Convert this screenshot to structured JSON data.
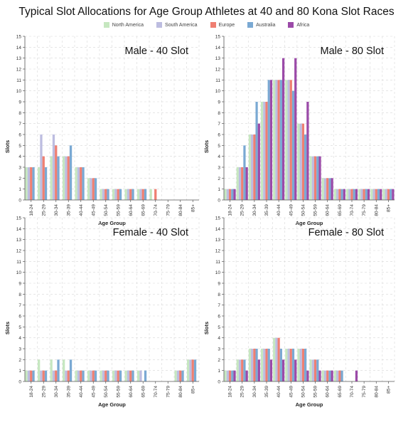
{
  "title": "Typical Slot Allocations for Age Group Athletes at 40 and 80 Kona Slot Races",
  "legend": [
    {
      "name": "North America",
      "color": "#c6e7c0"
    },
    {
      "name": "South America",
      "color": "#bdbde0"
    },
    {
      "name": "Europe",
      "color": "#ef7f72"
    },
    {
      "name": "Australia",
      "color": "#7aa9d3"
    },
    {
      "name": "Africa",
      "color": "#9b4aa8"
    }
  ],
  "chart_data": [
    {
      "type": "bar",
      "title": "Male - 40 Slot",
      "xlabel": "Age Group",
      "ylabel": "Slots",
      "ylim": [
        0,
        15
      ],
      "grid": true,
      "categories": [
        "18-24",
        "25-29",
        "30-34",
        "35-39",
        "40-44",
        "45-49",
        "50-54",
        "55-59",
        "60-64",
        "65-69",
        "70-74",
        "75-79",
        "80-84",
        "85+"
      ],
      "series": [
        {
          "name": "North America",
          "values": [
            3,
            3,
            4,
            4,
            3,
            2,
            1,
            1,
            1,
            1,
            1,
            0,
            0,
            0
          ]
        },
        {
          "name": "South America",
          "values": [
            3,
            6,
            6,
            4,
            3,
            2,
            1,
            1,
            1,
            1,
            0,
            0,
            0,
            0
          ]
        },
        {
          "name": "Europe",
          "values": [
            3,
            4,
            5,
            4,
            3,
            2,
            1,
            1,
            1,
            1,
            1,
            0,
            0,
            0
          ]
        },
        {
          "name": "Australia",
          "values": [
            3,
            3,
            4,
            5,
            3,
            2,
            1,
            1,
            1,
            1,
            0,
            0,
            0,
            0
          ]
        },
        {
          "name": "Africa",
          "values": [
            0,
            0,
            0,
            0,
            0,
            0,
            0,
            0,
            0,
            0,
            0,
            0,
            0,
            0
          ]
        }
      ]
    },
    {
      "type": "bar",
      "title": "Male - 80 Slot",
      "xlabel": "Age Group",
      "ylabel": "Slots",
      "ylim": [
        0,
        15
      ],
      "grid": true,
      "categories": [
        "18-24",
        "25-29",
        "30-34",
        "35-39",
        "40-44",
        "45-49",
        "50-54",
        "55-59",
        "60-64",
        "65-69",
        "70-74",
        "75-79",
        "80-84",
        "85+"
      ],
      "series": [
        {
          "name": "North America",
          "values": [
            1,
            3,
            6,
            9,
            11,
            11,
            7,
            4,
            2,
            1,
            1,
            1,
            1,
            1
          ]
        },
        {
          "name": "South America",
          "values": [
            1,
            3,
            6,
            9,
            11,
            11,
            7,
            4,
            2,
            1,
            1,
            1,
            1,
            1
          ]
        },
        {
          "name": "Europe",
          "values": [
            1,
            3,
            6,
            9,
            11,
            11,
            7,
            4,
            2,
            1,
            1,
            1,
            1,
            1
          ]
        },
        {
          "name": "Australia",
          "values": [
            1,
            5,
            9,
            11,
            11,
            10,
            6,
            4,
            2,
            1,
            1,
            1,
            1,
            1
          ]
        },
        {
          "name": "Africa",
          "values": [
            1,
            3,
            7,
            11,
            13,
            13,
            9,
            4,
            2,
            1,
            1,
            1,
            1,
            1
          ]
        }
      ]
    },
    {
      "type": "bar",
      "title": "Female - 40 Slot",
      "xlabel": "Age Group",
      "ylabel": "Slots",
      "ylim": [
        0,
        15
      ],
      "grid": true,
      "categories": [
        "18-24",
        "25-29",
        "30-34",
        "35-39",
        "40-44",
        "45-49",
        "50-54",
        "55-59",
        "60-64",
        "65-69",
        "70-74",
        "75-79",
        "80-84",
        "85+"
      ],
      "series": [
        {
          "name": "North America",
          "values": [
            1,
            2,
            2,
            2,
            1,
            1,
            1,
            1,
            1,
            1,
            0,
            0,
            1,
            2
          ]
        },
        {
          "name": "South America",
          "values": [
            1,
            1,
            1,
            1,
            1,
            1,
            1,
            1,
            1,
            1,
            0,
            0,
            1,
            2
          ]
        },
        {
          "name": "Europe",
          "values": [
            1,
            1,
            1,
            1,
            1,
            1,
            1,
            1,
            1,
            0,
            0,
            0,
            1,
            2
          ]
        },
        {
          "name": "Australia",
          "values": [
            1,
            1,
            2,
            2,
            1,
            1,
            1,
            1,
            1,
            1,
            0,
            0,
            1,
            2
          ]
        },
        {
          "name": "Africa",
          "values": [
            0,
            0,
            0,
            0,
            0,
            0,
            0,
            0,
            0,
            0,
            0,
            0,
            0,
            0
          ]
        }
      ]
    },
    {
      "type": "bar",
      "title": "Female - 80 Slot",
      "xlabel": "Age Group",
      "ylabel": "Slots",
      "ylim": [
        0,
        15
      ],
      "grid": true,
      "categories": [
        "18-24",
        "25-29",
        "30-34",
        "35-39",
        "40-44",
        "45-49",
        "50-54",
        "55-59",
        "60-64",
        "65-69",
        "70-74",
        "75-79",
        "80-84",
        "85+"
      ],
      "series": [
        {
          "name": "North America",
          "values": [
            1,
            2,
            3,
            3,
            4,
            3,
            3,
            2,
            1,
            1,
            0,
            0,
            0,
            0
          ]
        },
        {
          "name": "South America",
          "values": [
            1,
            2,
            3,
            3,
            4,
            3,
            3,
            2,
            1,
            1,
            0,
            0,
            0,
            0
          ]
        },
        {
          "name": "Europe",
          "values": [
            1,
            2,
            3,
            3,
            4,
            3,
            3,
            2,
            1,
            1,
            0,
            0,
            0,
            0
          ]
        },
        {
          "name": "Australia",
          "values": [
            1,
            2,
            3,
            3,
            3,
            3,
            3,
            2,
            1,
            1,
            0,
            0,
            0,
            0
          ]
        },
        {
          "name": "Africa",
          "values": [
            1,
            1,
            2,
            2,
            2,
            2,
            1,
            1,
            1,
            0,
            1,
            0,
            0,
            0
          ]
        }
      ]
    }
  ]
}
